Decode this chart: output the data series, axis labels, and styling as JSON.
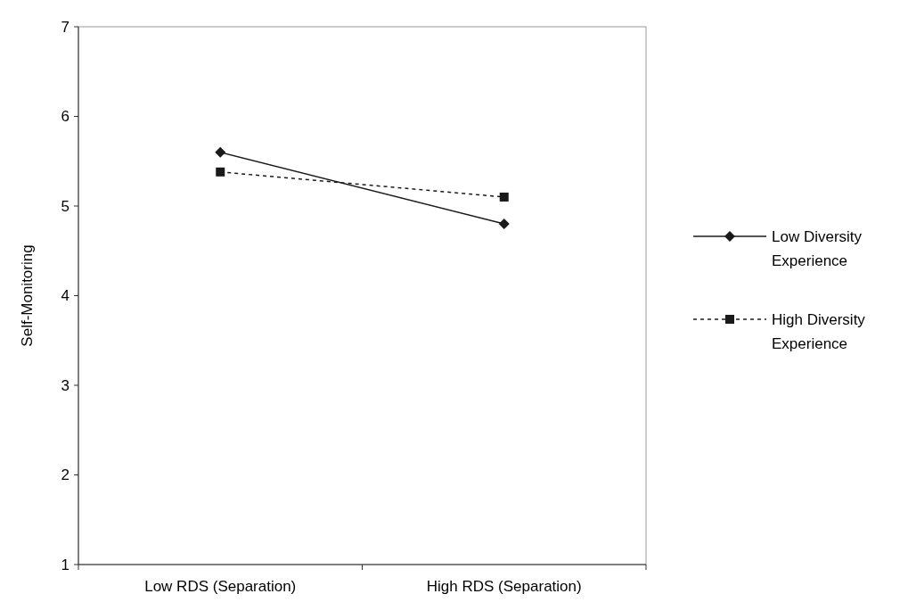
{
  "chart_data": {
    "type": "line",
    "ylabel": "Self-Monitoring",
    "categories": [
      "Low RDS (Separation)",
      "High RDS (Separation)"
    ],
    "ylim": [
      1,
      7
    ],
    "yticks": [
      1,
      2,
      3,
      4,
      5,
      6,
      7
    ],
    "grid": false,
    "legend": "right",
    "series": [
      {
        "name": "Low Diversity Experience",
        "color": "#1a1a1a",
        "values": [
          5.6,
          4.8
        ],
        "marker": "diamond",
        "line_style": "solid"
      },
      {
        "name": "High Diversity Experience",
        "color": "#1a1a1a",
        "values": [
          5.38,
          5.1
        ],
        "marker": "square",
        "line_style": "dashed"
      }
    ]
  }
}
